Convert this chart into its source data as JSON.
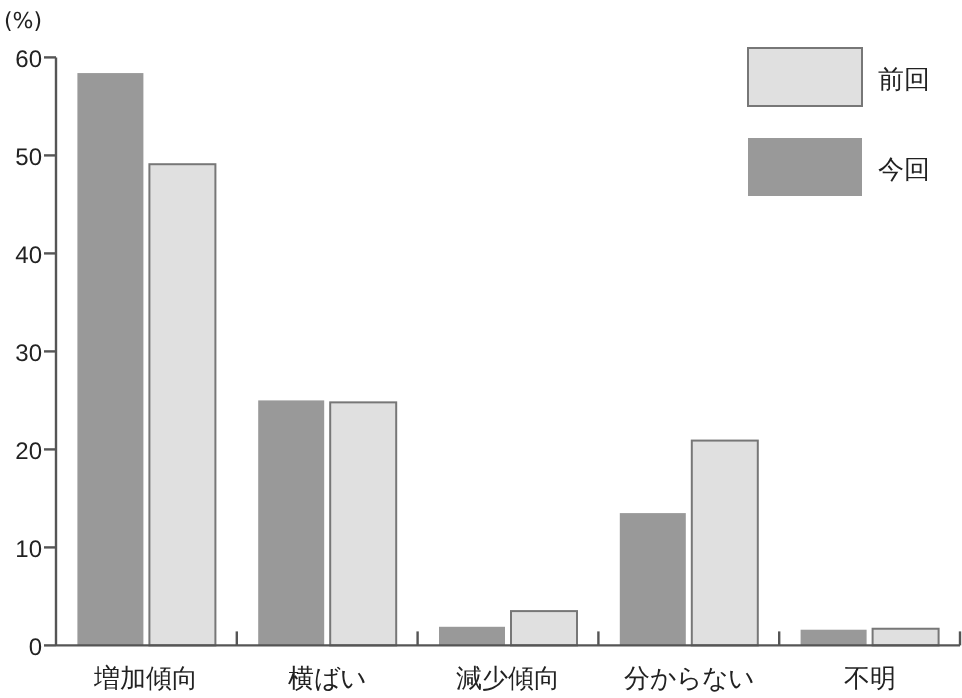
{
  "chart_data": {
    "type": "bar",
    "ylabel": "(%)",
    "categories": [
      "増加傾向",
      "横ばい",
      "減少傾向",
      "分からない",
      "不明"
    ],
    "series": [
      {
        "name": "今回",
        "color": "#999999",
        "values": [
          58.4,
          25.0,
          1.9,
          13.5,
          1.6
        ]
      },
      {
        "name": "前回",
        "color": "#e0e0e0",
        "values": [
          49.1,
          24.8,
          3.5,
          20.9,
          1.7
        ]
      }
    ],
    "ylim": [
      0,
      60
    ],
    "yticks": [
      0,
      10,
      20,
      30,
      40,
      50,
      60
    ],
    "grid": false,
    "legend": "top right"
  }
}
